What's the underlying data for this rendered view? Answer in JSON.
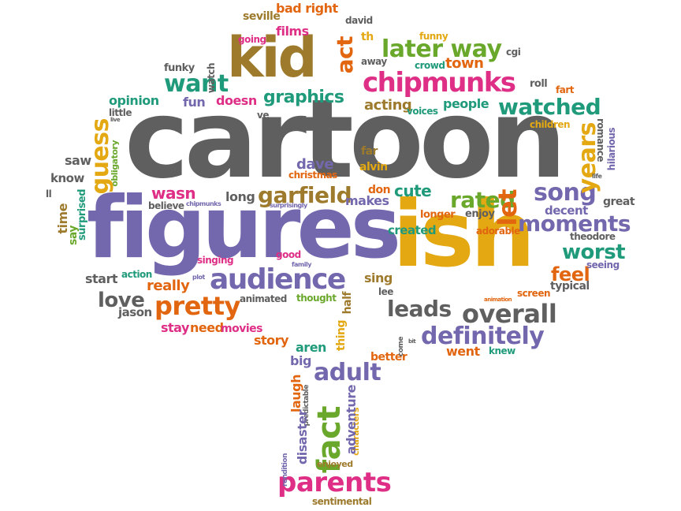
{
  "wordcloud": {
    "words": {
      "cartoon": "cartoon",
      "figures": "figures",
      "ish": "ish",
      "kid": "kid",
      "chipmunks": "chipmunks",
      "audience": "audience",
      "overall": "overall",
      "pretty": "pretty",
      "fact": "fact",
      "parents": "parents",
      "song": "song",
      "moments": "moments",
      "watched": "watched",
      "later_way": "later way",
      "want": "want",
      "rated": "rated",
      "definitely": "definitely",
      "adult": "adult",
      "garfield": "garfield",
      "love": "love",
      "leads": "leads",
      "worst": "worst",
      "feel": "feel",
      "graphics": "graphics",
      "years": "years",
      "guess": "guess",
      "let": "let",
      "act": "act",
      "fun": "fun",
      "opinion": "opinion",
      "doesn": "doesn",
      "acting": "acting",
      "people": "people",
      "town": "town",
      "dave": "dave",
      "wasn": "wasn",
      "long": "long",
      "cute": "cute",
      "makes": "makes",
      "don": "don",
      "really": "really",
      "start": "start",
      "sing": "sing",
      "story": "story",
      "stay": "stay",
      "need": "need",
      "movies": "movies",
      "went": "went",
      "aren": "aren",
      "big": "big",
      "better": "better",
      "know": "know",
      "saw": "saw",
      "decent": "decent",
      "great": "great",
      "jason": "jason",
      "created": "created",
      "longer": "longer",
      "enjoy": "enjoy",
      "theodore": "theodore",
      "seeing": "seeing",
      "typical": "typical",
      "screen": "screen",
      "children": "children",
      "voices": "voices",
      "crowd": "crowd",
      "away": "away",
      "roll": "roll",
      "fart": "fart",
      "cgi": "cgi",
      "funny": "funny",
      "th": "th",
      "films": "films",
      "bad_right": "bad right",
      "david": "david",
      "seville": "seville",
      "going": "going",
      "funky": "funky",
      "watch": "watch",
      "little": "little",
      "ve": "ve",
      "far": "far",
      "alvin": "alvin",
      "christmas": "christmas",
      "believe": "believe",
      "surprisingly": "surprisingly",
      "chipmunks_small": "chipmunks",
      "singing": "singing",
      "good": "good",
      "family": "family",
      "action": "action",
      "plot": "plot",
      "animated": "animated",
      "thought": "thought",
      "lee": "lee",
      "adorable": "adorable",
      "animation": "animation",
      "knew": "knew",
      "bit": "bit",
      "characters": "characters",
      "enjoyed": "enjoyed",
      "sentimental": "sentimental",
      "rendition": "rendition",
      "ll": "ll",
      "life": "life",
      "live": "live",
      "time": "time",
      "say": "say",
      "surprised": "surprised",
      "obligatory": "obligatory",
      "romance": "romance",
      "hilarious": "hilarious",
      "thing": "thing",
      "half": "half",
      "come": "come",
      "laugh": "laugh",
      "predictable": "predictable",
      "disaster": "disaster",
      "adventure": "adventure"
    },
    "colors": {
      "gray": "#5f5f5f",
      "purple": "#7367ad",
      "gold": "#e3a812",
      "brown": "#9d7a2c",
      "orange": "#e2650f",
      "green": "#6aa82c",
      "teal": "#1f9a7a",
      "pink": "#de2e86"
    }
  }
}
